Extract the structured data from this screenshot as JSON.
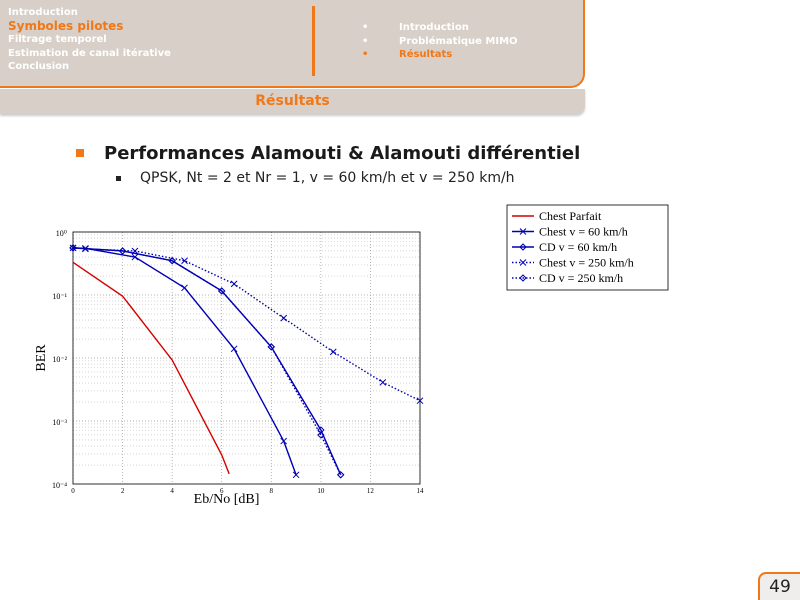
{
  "header": {
    "sections": [
      "Introduction",
      "Symboles pilotes",
      "Filtrage temporel",
      "Estimation de canal itérative",
      "Conclusion"
    ],
    "subsections": [
      "Introduction",
      "Problématique MIMO",
      "Résultats"
    ]
  },
  "slide_title": "Résultats",
  "bullet": "Performances Alamouti & Alamouti différentiel",
  "sub_bullet": "QPSK, Nt = 2 et Nr = 1, v = 60 km/h et v = 250 km/h",
  "page_number": "49",
  "chart_data": {
    "type": "line",
    "x_label": "Eb/No [dB]",
    "y_label": "BER",
    "log_y": true,
    "grid": true,
    "xlim": [
      0,
      14
    ],
    "xticks": [
      0,
      2,
      4,
      6,
      8,
      10,
      12,
      14
    ],
    "ylim": [
      0.0001,
      1
    ],
    "yticks": [
      {
        "value": 0.0001,
        "label": "10⁻⁴"
      },
      {
        "value": 0.001,
        "label": "10⁻³"
      },
      {
        "value": 0.01,
        "label": "10⁻²"
      },
      {
        "value": 0.1,
        "label": "10⁻¹"
      },
      {
        "value": 1,
        "label": "10⁰"
      }
    ],
    "series": [
      {
        "name": "Chest Parfait",
        "color": "#d40000",
        "dash": "solid",
        "marker": "none",
        "x": [
          0,
          2,
          4,
          6,
          6.3
        ],
        "values": [
          0.33,
          0.096,
          0.0093,
          0.00029,
          0.000145
        ]
      },
      {
        "name": "Chest v = 60 km/h",
        "color": "#0000b4",
        "dash": "solid",
        "marker": "x",
        "x": [
          0,
          0.5,
          2.5,
          4.5,
          6.5,
          8.5,
          9
        ],
        "values": [
          0.56,
          0.55,
          0.4,
          0.13,
          0.014,
          0.00048,
          0.00014
        ]
      },
      {
        "name": "CD v = 60 km/h",
        "color": "#0000b4",
        "dash": "solid",
        "marker": "diamond",
        "x": [
          0,
          2,
          4,
          6,
          8,
          10,
          10.8
        ],
        "values": [
          0.56,
          0.5,
          0.35,
          0.116,
          0.015,
          0.00072,
          0.00014
        ]
      },
      {
        "name": "Chest v = 250 km/h",
        "color": "#0000b4",
        "dash": "dotted",
        "marker": "x",
        "x": [
          0.5,
          2.5,
          4.5,
          6.5,
          8.5,
          10.5,
          12.5,
          14
        ],
        "values": [
          0.54,
          0.5,
          0.35,
          0.15,
          0.043,
          0.0125,
          0.0041,
          0.0021
        ]
      },
      {
        "name": "CD v = 250 km/h",
        "color": "#0000b4",
        "dash": "dotted",
        "marker": "diamond",
        "x": [
          0,
          2,
          4,
          6,
          8,
          10,
          10.8
        ],
        "values": [
          0.56,
          0.5,
          0.35,
          0.116,
          0.015,
          0.0006,
          0.00014
        ]
      }
    ]
  }
}
